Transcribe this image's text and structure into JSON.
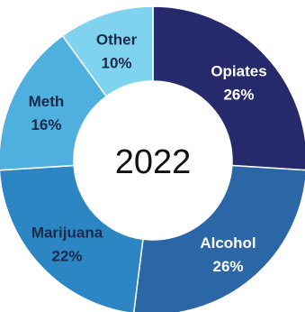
{
  "chart_data": {
    "type": "pie",
    "center_label": "2022",
    "slices": [
      {
        "label": "Opiates",
        "value": 26,
        "display": "26%",
        "color": "#27296d",
        "text_color": "#ffffff"
      },
      {
        "label": "Alcohol",
        "value": 26,
        "display": "26%",
        "color": "#2b66a6",
        "text_color": "#ffffff"
      },
      {
        "label": "Marijuana",
        "value": 22,
        "display": "22%",
        "color": "#2c86c4",
        "text_color": "#1b2a4a"
      },
      {
        "label": "Meth",
        "value": 16,
        "display": "16%",
        "color": "#4fb0e0",
        "text_color": "#1b2a4a"
      },
      {
        "label": "Other",
        "value": 10,
        "display": "10%",
        "color": "#7fd3ef",
        "text_color": "#1b2a4a"
      }
    ]
  }
}
